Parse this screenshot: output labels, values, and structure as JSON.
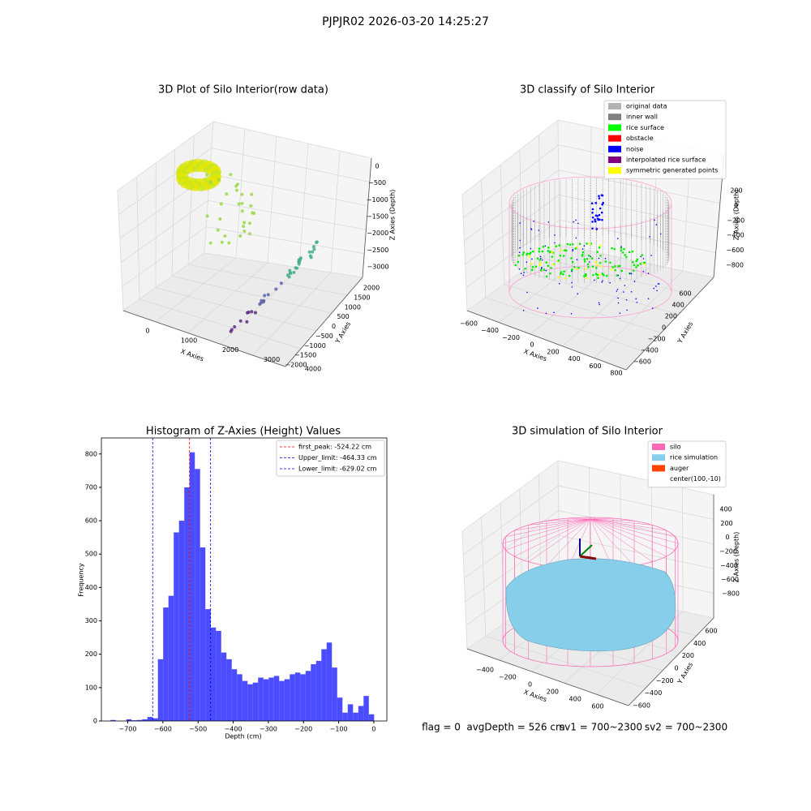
{
  "title": "PJPJR02 2026-03-20 14:25:27",
  "footer": [
    "flag = 0",
    "avgDepth = 526 cm",
    "sv1 = 700~2300",
    "sv2 = 700~2300"
  ],
  "chart_data": [
    {
      "type": "scatter3d",
      "title": "3D Plot of Silo Interior(row data)",
      "xlabel": "X Axies",
      "ylabel": "Y Axies",
      "zlabel": "Z Axies (Depth)",
      "xticks": [
        0,
        1000,
        2000,
        3000,
        4000
      ],
      "yticks": [
        2000,
        1500,
        1000,
        500,
        0,
        {
          "value": -500,
          "label": "−500"
        },
        {
          "value": -1000,
          "label": "−1000"
        },
        {
          "value": -1500,
          "label": "−1500"
        },
        {
          "value": -2000,
          "label": "−2000"
        }
      ],
      "zticks": [
        0,
        {
          "value": -500,
          "label": "−500"
        },
        {
          "value": -1000,
          "label": "−1000"
        },
        {
          "value": -1500,
          "label": "−1500"
        },
        {
          "value": -2000,
          "label": "−2000"
        },
        {
          "value": -2500,
          "label": "−2500"
        },
        {
          "value": -3000,
          "label": "−3000"
        }
      ]
    },
    {
      "type": "scatter3d",
      "title": "3D classify of Silo Interior",
      "xlabel": "X Axies",
      "ylabel": "Y Axies",
      "zlabel": "Z Axies (Depth)",
      "xticks": [
        {
          "value": -600,
          "label": "−600"
        },
        {
          "value": -400,
          "label": "−400"
        },
        {
          "value": -200,
          "label": "−200"
        },
        0,
        200,
        400,
        600,
        800
      ],
      "yticks": [
        600,
        400,
        200,
        0,
        {
          "value": -200,
          "label": "−200"
        },
        {
          "value": -400,
          "label": "−400"
        },
        {
          "value": -600,
          "label": "−600"
        }
      ],
      "zticks": [
        200,
        0,
        {
          "value": -200,
          "label": "−200"
        },
        {
          "value": -400,
          "label": "−400"
        },
        {
          "value": -600,
          "label": "−600"
        },
        {
          "value": -800,
          "label": "−800"
        }
      ],
      "legend": [
        {
          "name": "original data",
          "color": "#b3b3b3"
        },
        {
          "name": "inner wall",
          "color": "#808080"
        },
        {
          "name": "rice surface",
          "color": "#00ff00"
        },
        {
          "name": "obstacle",
          "color": "#ff0000"
        },
        {
          "name": "noise",
          "color": "#0000ff"
        },
        {
          "name": "interpolated rice surface",
          "color": "#800080"
        },
        {
          "name": "symmetric generated points",
          "color": "#ffff00"
        }
      ]
    },
    {
      "type": "histogram",
      "title": "Histogram of Z-Axies (Height) Values",
      "xlabel": "Depth (cm)",
      "ylabel": "Frequency",
      "color": "#0000ff",
      "bins": [
        -749.2,
        -734.2,
        -719.2,
        -704.2,
        -689.2,
        -674.2,
        -659.2,
        -644.2,
        -629.2,
        -614.2,
        -599.2,
        -584.2,
        -569.2,
        -554.2,
        -539.2,
        -524.2,
        -509.2,
        -494.2,
        -479.2,
        -464.2,
        -449.2,
        -434.2,
        -419.2,
        -404.2,
        -389.2,
        -374.2,
        -359.2,
        -344.2,
        -329.2,
        -314.2,
        -299.2,
        -284.2,
        -269.2,
        -254.2,
        -239.2,
        -224.2,
        -209.2,
        -194.2,
        -179.2,
        -164.2,
        -149.2,
        -134.2,
        -119.2,
        -104.2,
        -89.2,
        -74.2,
        -59.2,
        -44.2,
        -29.2,
        -14.2,
        0.8
      ],
      "values": [
        3,
        0,
        0,
        5,
        2,
        3,
        5,
        12,
        8,
        185,
        340,
        375,
        565,
        600,
        700,
        805,
        755,
        520,
        335,
        280,
        270,
        205,
        185,
        155,
        140,
        120,
        110,
        115,
        130,
        125,
        130,
        135,
        120,
        125,
        140,
        145,
        140,
        150,
        170,
        180,
        215,
        235,
        160,
        70,
        25,
        50,
        25,
        45,
        75,
        20
      ],
      "lines": [
        {
          "label": "first_peak: -524.22 cm",
          "value": -524.22,
          "color": "#ff0000"
        },
        {
          "label": "Upper_limit: -464.33 cm",
          "value": -464.33,
          "color": "#0000ff"
        },
        {
          "label": "Lower_limit: -629.02 cm",
          "value": -629.02,
          "color": "#0000ff"
        }
      ],
      "xlim": [
        -775,
        37
      ],
      "ylim": [
        0,
        848
      ],
      "xticks": [
        {
          "value": -700,
          "label": "−700"
        },
        {
          "value": -600,
          "label": "−600"
        },
        {
          "value": -500,
          "label": "−500"
        },
        {
          "value": -400,
          "label": "−400"
        },
        {
          "value": -300,
          "label": "−300"
        },
        {
          "value": -200,
          "label": "−200"
        },
        {
          "value": -100,
          "label": "−100"
        },
        0
      ],
      "yticks": [
        0,
        100,
        200,
        300,
        400,
        500,
        600,
        700,
        800
      ]
    },
    {
      "type": "surface3d",
      "title": "3D simulation of Silo Interior",
      "xlabel": "X Axies",
      "ylabel": "Y Axies",
      "zlabel": "Z Axies (Depth)",
      "xticks": [
        {
          "value": -400,
          "label": "−400"
        },
        {
          "value": -200,
          "label": "−200"
        },
        0,
        200,
        400,
        600
      ],
      "yticks": [
        600,
        400,
        200,
        0,
        {
          "value": -200,
          "label": "−200"
        },
        {
          "value": -400,
          "label": "−400"
        },
        {
          "value": -600,
          "label": "−600"
        }
      ],
      "zticks": [
        400,
        200,
        0,
        {
          "value": -200,
          "label": "−200"
        },
        {
          "value": -400,
          "label": "−400"
        },
        {
          "value": -600,
          "label": "−600"
        },
        {
          "value": -800,
          "label": "−800"
        }
      ],
      "legend": [
        {
          "name": "silo",
          "color": "#ff69b4"
        },
        {
          "name": "rice simulation",
          "color": "#87ceeb"
        },
        {
          "name": "auger",
          "color": "#ff4500"
        },
        {
          "name": "center(100,-10)"
        }
      ]
    }
  ]
}
